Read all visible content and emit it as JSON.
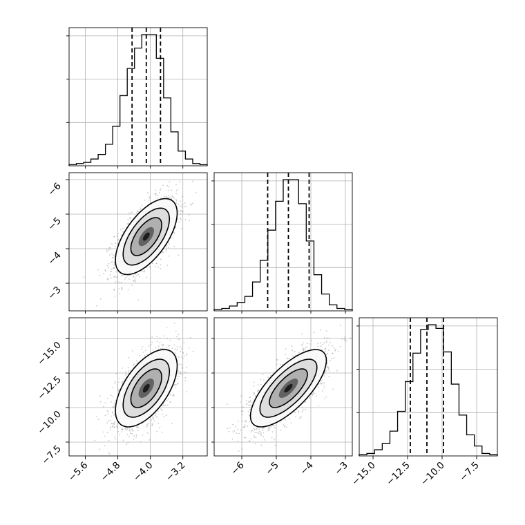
{
  "chart_data": {
    "type": "corner",
    "parameters": [
      {
        "range": [
          -6.0,
          -2.6
        ],
        "ticks": [
          -5.6,
          -4.8,
          -4.0,
          -3.2
        ],
        "tick_labels": [
          "−5.6",
          "−4.8",
          "−4.0",
          "−3.2"
        ],
        "quantiles": [
          -4.45,
          -4.1,
          -3.75
        ],
        "hist": [
          1,
          2,
          3,
          6,
          10,
          19,
          35,
          62,
          86,
          104,
          116,
          116,
          95,
          60,
          30,
          13,
          6,
          2,
          1
        ]
      },
      {
        "range": [
          -6.8,
          -2.8
        ],
        "ticks": [
          -6,
          -5,
          -4,
          -3
        ],
        "tick_labels": [
          "−6",
          "−5",
          "−4",
          "−3"
        ],
        "quantiles": [
          -5.25,
          -4.65,
          -4.05
        ],
        "hist": [
          1,
          2,
          4,
          7,
          12,
          24,
          42,
          67,
          91,
          109,
          109,
          89,
          58,
          30,
          14,
          5,
          2,
          1
        ]
      },
      {
        "range": [
          -16.0,
          -6.0
        ],
        "ticks": [
          -15.0,
          -12.5,
          -10.0,
          -7.5
        ],
        "tick_labels": [
          "−15.0",
          "−12.5",
          "−10.0",
          "−7.5"
        ],
        "quantiles": [
          -12.3,
          -11.1,
          -9.9
        ],
        "hist": [
          1,
          2,
          5,
          10,
          20,
          36,
          60,
          83,
          102,
          106,
          103,
          84,
          58,
          33,
          17,
          8,
          2,
          1
        ]
      }
    ],
    "y_tick_labels": {
      "row1": [
        "−3",
        "−4",
        "−5",
        "−6"
      ],
      "row2": [
        "−7.5",
        "−10.0",
        "−12.5",
        "−15.0"
      ]
    },
    "pairs": [
      {
        "row": 1,
        "col": 0,
        "mean": [
          -4.1,
          -4.65
        ],
        "sd": [
          0.38,
          0.55
        ],
        "rho": 0.62
      },
      {
        "row": 2,
        "col": 0,
        "mean": [
          -4.1,
          -11.1
        ],
        "sd": [
          0.38,
          1.4
        ],
        "rho": 0.58
      },
      {
        "row": 2,
        "col": 1,
        "mean": [
          -4.65,
          -11.1
        ],
        "sd": [
          0.55,
          1.4
        ],
        "rho": 0.72
      }
    ],
    "grid": true
  }
}
